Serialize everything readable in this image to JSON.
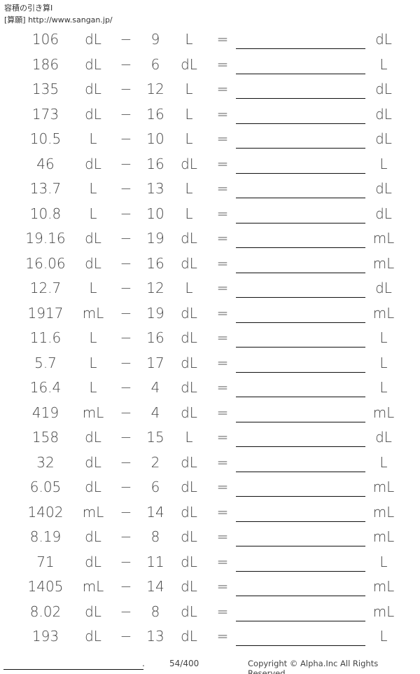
{
  "header": {
    "title": "容積の引き算Ⅰ",
    "site": "[算願] http://www.sangan.jp/"
  },
  "problems": [
    [
      "106",
      "dL",
      "9",
      "L",
      "dL"
    ],
    [
      "186",
      "dL",
      "6",
      "dL",
      "L"
    ],
    [
      "135",
      "dL",
      "12",
      "L",
      "dL"
    ],
    [
      "173",
      "dL",
      "16",
      "L",
      "dL"
    ],
    [
      "10.5",
      "L",
      "10",
      "L",
      "dL"
    ],
    [
      "46",
      "dL",
      "16",
      "dL",
      "L"
    ],
    [
      "13.7",
      "L",
      "13",
      "L",
      "dL"
    ],
    [
      "10.8",
      "L",
      "10",
      "L",
      "dL"
    ],
    [
      "19.16",
      "dL",
      "19",
      "dL",
      "mL"
    ],
    [
      "16.06",
      "dL",
      "16",
      "dL",
      "mL"
    ],
    [
      "12.7",
      "L",
      "12",
      "L",
      "dL"
    ],
    [
      "1917",
      "mL",
      "19",
      "dL",
      "mL"
    ],
    [
      "11.6",
      "L",
      "16",
      "dL",
      "L"
    ],
    [
      "5.7",
      "L",
      "17",
      "dL",
      "L"
    ],
    [
      "16.4",
      "L",
      "4",
      "dL",
      "L"
    ],
    [
      "419",
      "mL",
      "4",
      "dL",
      "mL"
    ],
    [
      "158",
      "dL",
      "15",
      "L",
      "dL"
    ],
    [
      "32",
      "dL",
      "2",
      "dL",
      "L"
    ],
    [
      "6.05",
      "dL",
      "6",
      "dL",
      "mL"
    ],
    [
      "1402",
      "mL",
      "14",
      "dL",
      "mL"
    ],
    [
      "8.19",
      "dL",
      "8",
      "dL",
      "mL"
    ],
    [
      "71",
      "dL",
      "11",
      "dL",
      "L"
    ],
    [
      "1405",
      "mL",
      "14",
      "dL",
      "mL"
    ],
    [
      "8.02",
      "dL",
      "8",
      "dL",
      "mL"
    ],
    [
      "193",
      "dL",
      "13",
      "dL",
      "L"
    ]
  ],
  "symbols": {
    "minus": "−",
    "equals": "="
  },
  "footer": {
    "dot": ".",
    "page": "54/400",
    "copyright": "Copyright © Alpha.Inc All Rights Reserved."
  }
}
